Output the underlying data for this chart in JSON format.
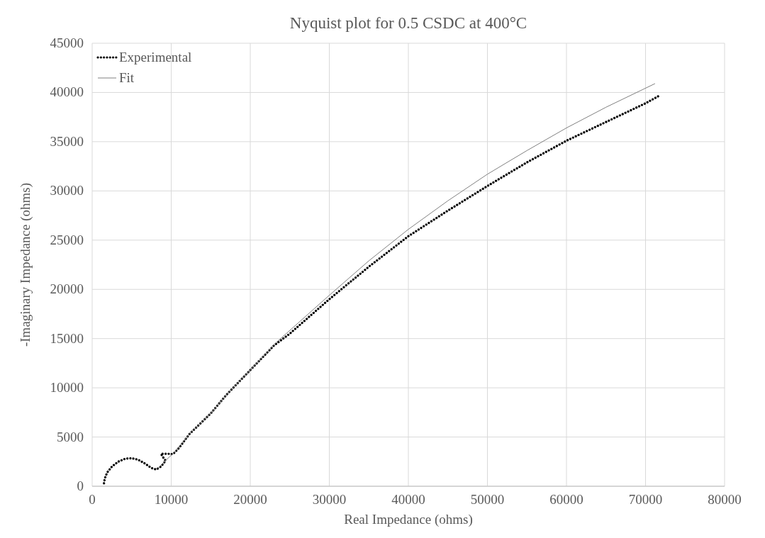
{
  "chart_data": {
    "type": "line",
    "title": "Nyquist plot for 0.5 CSDC at 400°C",
    "xlabel": "Real Impedance (ohms)",
    "ylabel": "-Imaginary Impedance (ohms)",
    "xlim": [
      0,
      80000
    ],
    "xticks": [
      0,
      10000,
      20000,
      30000,
      40000,
      50000,
      60000,
      70000,
      80000
    ],
    "ylim": [
      0,
      45000
    ],
    "yticks": [
      0,
      5000,
      10000,
      15000,
      20000,
      25000,
      30000,
      35000,
      40000,
      45000
    ],
    "grid": true,
    "legend": "top left",
    "series": [
      {
        "name": "Experimental",
        "color": "#000000",
        "line_style": "dotted",
        "x": [
          1500,
          1600,
          1900,
          2500,
          3300,
          4200,
          5000,
          5800,
          6700,
          7500,
          8100,
          8700,
          9300,
          9050,
          8700,
          9600,
          10200,
          11000,
          12300,
          15000,
          17000,
          20000,
          23000,
          25000,
          30000,
          35000,
          40000,
          45000,
          50000,
          55000,
          60000,
          65000,
          70000,
          71800
        ],
        "values": [
          300,
          800,
          1400,
          2000,
          2500,
          2800,
          2850,
          2700,
          2300,
          1850,
          1700,
          2000,
          2600,
          2850,
          3300,
          3300,
          3250,
          3900,
          5300,
          7400,
          9300,
          11800,
          14300,
          15500,
          19000,
          22300,
          25400,
          28000,
          30500,
          32900,
          35100,
          37000,
          38900,
          39700
        ]
      },
      {
        "name": "Fit",
        "color": "#808080",
        "line_style": "solid",
        "x": [
          8300,
          9000,
          10200,
          12300,
          15000,
          17000,
          20000,
          23000,
          30000,
          35000,
          40000,
          45000,
          50000,
          55000,
          60000,
          65000,
          71200
        ],
        "values": [
          1800,
          2400,
          3300,
          5300,
          7400,
          9300,
          11800,
          14400,
          19400,
          22900,
          26100,
          29000,
          31700,
          34100,
          36400,
          38500,
          40900
        ]
      }
    ]
  }
}
